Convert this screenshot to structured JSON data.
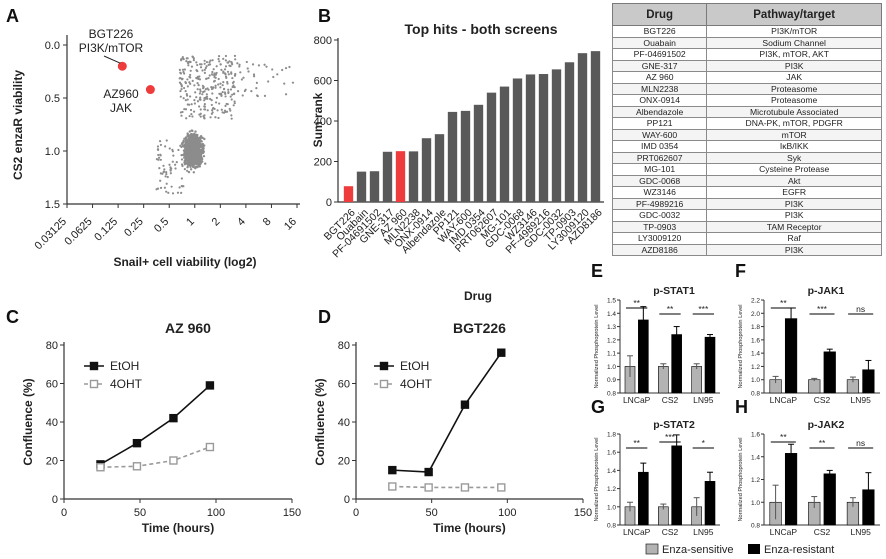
{
  "panels": {
    "A": "A",
    "B": "B",
    "C": "C",
    "D": "D",
    "E": "E",
    "F": "F",
    "G": "G",
    "H": "H"
  },
  "chart_data": [
    {
      "id": "A",
      "type": "scatter",
      "xlabel": "Snail+ cell viability (log2)",
      "ylabel": "CS2 enzaR viability",
      "x_ticks": [
        "0.03125",
        "0.0625",
        "0.125",
        "0.25",
        "0.5",
        "1",
        "2",
        "4",
        "8",
        "16"
      ],
      "y_ticks": [
        "0.0",
        "0.5",
        "1.0",
        "1.5"
      ],
      "ylim": [
        1.5,
        0
      ],
      "highlights": [
        {
          "label": "BGT226",
          "sublabel": "PI3K/mTOR",
          "x": 0.14,
          "y": 0.2,
          "color": "#ee3b3b"
        },
        {
          "label": "AZ960",
          "sublabel": "JAK",
          "x": 0.3,
          "y": 0.42,
          "color": "#ee3b3b"
        }
      ]
    },
    {
      "id": "B",
      "type": "bar",
      "title": "Top hits - both screens",
      "xlabel": "Drug",
      "ylabel": "Sum rank",
      "ylim": [
        0,
        800
      ],
      "y_ticks": [
        "0",
        "200",
        "400",
        "600",
        "800"
      ],
      "categories": [
        "BGT226",
        "Ouabain",
        "PF-04691502",
        "GNE-317",
        "AZ 960",
        "MLN2238",
        "ONX-0914",
        "Albendazole",
        "PP121",
        "WAY-600",
        "IMD 0354",
        "PRT062607",
        "MG-101",
        "GDC-0068",
        "WZ3146",
        "PF-4989216",
        "GDC-0032",
        "TP-0903",
        "LY3009120",
        "AZD8186"
      ],
      "values": [
        78,
        150,
        152,
        248,
        251,
        250,
        315,
        335,
        445,
        450,
        480,
        540,
        570,
        610,
        630,
        632,
        655,
        690,
        735,
        745
      ],
      "highlight_indices": [
        0,
        4
      ],
      "bar_color": "#595959",
      "highlight_color": "#ee3b3b"
    },
    {
      "id": "C",
      "type": "line",
      "title": "AZ 960",
      "xlabel": "Time (hours)",
      "ylabel": "Confluence (%)",
      "xlim": [
        0,
        150
      ],
      "ylim": [
        0,
        80
      ],
      "x_ticks": [
        "0",
        "50",
        "100",
        "150"
      ],
      "y_ticks": [
        "0",
        "20",
        "40",
        "60",
        "80"
      ],
      "series": [
        {
          "name": "EtOH",
          "x": [
            24,
            48,
            72,
            96
          ],
          "y": [
            18,
            29,
            42,
            59
          ],
          "style": "solid"
        },
        {
          "name": "4OHT",
          "x": [
            24,
            48,
            72,
            96
          ],
          "y": [
            16.5,
            17,
            20,
            27
          ],
          "style": "dashed"
        }
      ]
    },
    {
      "id": "D",
      "type": "line",
      "title": "BGT226",
      "xlabel": "Time (hours)",
      "ylabel": "Confluence (%)",
      "xlim": [
        0,
        150
      ],
      "ylim": [
        0,
        80
      ],
      "x_ticks": [
        "0",
        "50",
        "100",
        "150"
      ],
      "y_ticks": [
        "0",
        "20",
        "40",
        "60",
        "80"
      ],
      "series": [
        {
          "name": "EtOH",
          "x": [
            24,
            48,
            72,
            96
          ],
          "y": [
            15,
            14,
            49,
            76
          ],
          "style": "solid"
        },
        {
          "name": "4OHT",
          "x": [
            24,
            48,
            72,
            96
          ],
          "y": [
            6.5,
            6,
            6,
            6
          ],
          "style": "dashed"
        }
      ]
    },
    {
      "id": "E",
      "type": "bar",
      "title": "p-STAT1",
      "ylabel": "Normalized Phosphoprotein Level",
      "categories": [
        "LNCaP",
        "CS2",
        "LN95"
      ],
      "ylim": [
        0.8,
        1.5
      ],
      "y_ticks": [
        "0.8",
        "0.9",
        "1.0",
        "1.1",
        "1.2",
        "1.3",
        "1.4",
        "1.5"
      ],
      "series": [
        {
          "name": "Enza-sensitive",
          "values": [
            1.0,
            1.0,
            1.0
          ],
          "err": [
            0.08,
            0.02,
            0.02
          ]
        },
        {
          "name": "Enza-resistant",
          "values": [
            1.35,
            1.24,
            1.22
          ],
          "err": [
            0.1,
            0.06,
            0.02
          ]
        }
      ],
      "sig": [
        "**",
        "**",
        "***"
      ]
    },
    {
      "id": "F",
      "type": "bar",
      "title": "p-JAK1",
      "ylabel": "Normalized Phosphoprotein Level",
      "categories": [
        "LNCaP",
        "CS2",
        "LN95"
      ],
      "ylim": [
        0.8,
        2.2
      ],
      "y_ticks": [
        "0.8",
        "1.0",
        "1.2",
        "1.4",
        "1.6",
        "1.8",
        "2.0",
        "2.2"
      ],
      "series": [
        {
          "name": "Enza-sensitive",
          "values": [
            1.0,
            1.0,
            1.0
          ],
          "err": [
            0.05,
            0.02,
            0.04
          ]
        },
        {
          "name": "Enza-resistant",
          "values": [
            1.92,
            1.42,
            1.15
          ],
          "err": [
            0.16,
            0.04,
            0.14
          ]
        }
      ],
      "sig": [
        "**",
        "***",
        "ns"
      ]
    },
    {
      "id": "G",
      "type": "bar",
      "title": "p-STAT2",
      "ylabel": "Normalized Phosphoprotein Level",
      "categories": [
        "LNCaP",
        "CS2",
        "LN95"
      ],
      "ylim": [
        0.8,
        1.8
      ],
      "y_ticks": [
        "0.8",
        "1.0",
        "1.2",
        "1.4",
        "1.6",
        "1.8"
      ],
      "series": [
        {
          "name": "Enza-sensitive",
          "values": [
            1.0,
            1.0,
            1.0
          ],
          "err": [
            0.05,
            0.03,
            0.1
          ]
        },
        {
          "name": "Enza-resistant",
          "values": [
            1.38,
            1.67,
            1.28
          ],
          "err": [
            0.1,
            0.12,
            0.1
          ]
        }
      ],
      "sig": [
        "**",
        "***",
        "*"
      ]
    },
    {
      "id": "H",
      "type": "bar",
      "title": "p-JAK2",
      "ylabel": "Normalized Phosphoprotein Level",
      "categories": [
        "LNCaP",
        "CS2",
        "LN95"
      ],
      "ylim": [
        0.8,
        1.6
      ],
      "y_ticks": [
        "0.8",
        "1.0",
        "1.2",
        "1.4",
        "1.6"
      ],
      "series": [
        {
          "name": "Enza-sensitive",
          "values": [
            1.0,
            1.0,
            1.0
          ],
          "err": [
            0.15,
            0.05,
            0.04
          ]
        },
        {
          "name": "Enza-resistant",
          "values": [
            1.43,
            1.25,
            1.11
          ],
          "err": [
            0.08,
            0.03,
            0.15
          ]
        }
      ],
      "sig": [
        "**",
        "**",
        "ns"
      ]
    }
  ],
  "table": {
    "headers": [
      "Drug",
      "Pathway/target"
    ],
    "rows": [
      [
        "BGT226",
        "PI3K/mTOR"
      ],
      [
        "Ouabain",
        "Sodium Channel"
      ],
      [
        "PF-04691502",
        "PI3K, mTOR, AKT"
      ],
      [
        "GNE-317",
        "PI3K"
      ],
      [
        "AZ 960",
        "JAK"
      ],
      [
        "MLN2238",
        "Proteasome"
      ],
      [
        "ONX-0914",
        "Proteasome"
      ],
      [
        "Albendazole",
        "Microtubule Associated"
      ],
      [
        "PP121",
        "DNA-PK, mTOR, PDGFR"
      ],
      [
        "WAY-600",
        "mTOR"
      ],
      [
        "IMD 0354",
        "IκB/IKK"
      ],
      [
        "PRT062607",
        "Syk"
      ],
      [
        "MG-101",
        "Cysteine Protease"
      ],
      [
        "GDC-0068",
        "Akt"
      ],
      [
        "WZ3146",
        "EGFR"
      ],
      [
        "PF-4989216",
        "PI3K"
      ],
      [
        "GDC-0032",
        "PI3K"
      ],
      [
        "TP-0903",
        "TAM Receptor"
      ],
      [
        "LY3009120",
        "Raf"
      ],
      [
        "AZD8186",
        "PI3K"
      ]
    ]
  },
  "legend": {
    "sensitive": "Enza-sensitive",
    "resistant": "Enza-resistant",
    "sensitive_color": "#b3b3b3",
    "resistant_color": "#000000"
  }
}
